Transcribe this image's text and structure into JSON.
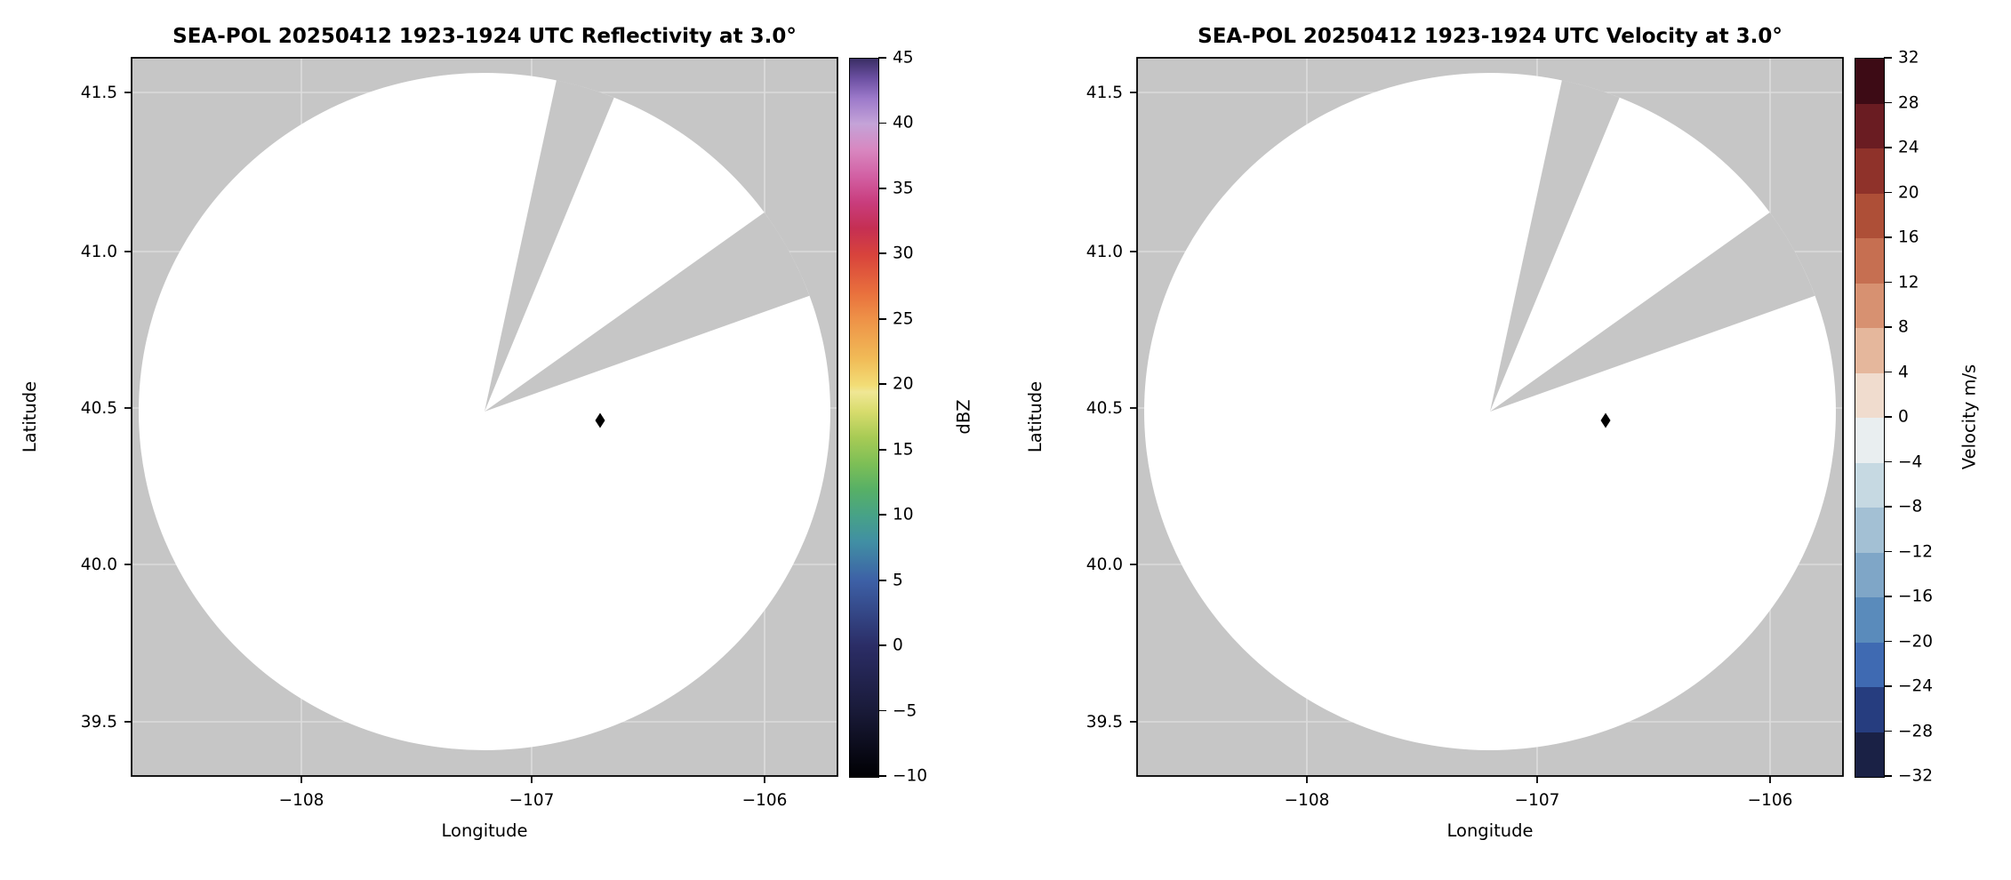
{
  "figure": {
    "bg": "#ffffff",
    "plot_bg_gray": "#c6c6c6",
    "grid_color": "#dcdcdc",
    "frame_color": "#000000",
    "marker_color": "#000000"
  },
  "panels": [
    {
      "title": "SEA-POL 20250412 1923-1924 UTC Reflectivity at 3.0°",
      "xlabel": "Longitude",
      "ylabel": "Latitude",
      "xticks": [
        "−108",
        "−107",
        "−106"
      ],
      "yticks": [
        "41.5",
        "41.0",
        "40.5",
        "40.0",
        "39.5"
      ],
      "colorbar": {
        "label": "dBZ",
        "type": "continuous",
        "ticks": [
          "45",
          "40",
          "35",
          "30",
          "25",
          "20",
          "15",
          "10",
          "5",
          "0",
          "−5",
          "−10"
        ],
        "gradient": [
          "#000003 0%",
          "#191a38 9.1%",
          "#2b2d66 18.2%",
          "#3d60a6 27.3%",
          "#418fa4 32.7%",
          "#47a287 36.4%",
          "#57b066 40%",
          "#7dbf56 43.6%",
          "#a8cb55 47.3%",
          "#d8dc6d 50.9%",
          "#f0e795 53.6%",
          "#f2dd76 54.5%",
          "#f1bb57 58.2%",
          "#ee9348 63.6%",
          "#e9713d 67.3%",
          "#d8433c 72.7%",
          "#c52f53 76.4%",
          "#c93d7d 80%",
          "#d260a3 83.6%",
          "#d887c0 87.3%",
          "#c4a3d8 90.9%",
          "#9c79ca 94.5%",
          "#6b4fa1 97.3%",
          "#3a2e65 100%"
        ]
      }
    },
    {
      "title": "SEA-POL 20250412 1923-1924 UTC Velocity at 3.0°",
      "xlabel": "Longitude",
      "ylabel": "Latitude",
      "xticks": [
        "−108",
        "−107",
        "−106"
      ],
      "yticks": [
        "41.5",
        "41.0",
        "40.5",
        "40.0",
        "39.5"
      ],
      "colorbar": {
        "label": "Velocity m/s",
        "type": "discrete",
        "ticks": [
          "32",
          "28",
          "24",
          "20",
          "16",
          "12",
          "8",
          "4",
          "0",
          "−4",
          "−8",
          "−12",
          "−16",
          "−20",
          "−24",
          "−28",
          "−32"
        ],
        "segment_colors_top_to_bottom": [
          "#3d0b15",
          "#6a1c22",
          "#8f322a",
          "#ae4f37",
          "#c66f51",
          "#d79171",
          "#e5b79c",
          "#f0dcce",
          "#e9eef0",
          "#c6d9e2",
          "#a3c0d4",
          "#7fa6c7",
          "#5a8bbb",
          "#3f6ab2",
          "#263d7f",
          "#1a2145"
        ]
      }
    }
  ],
  "chart_data": [
    {
      "type": "heatmap",
      "subtype": "radar_ppi_scan",
      "title": "SEA-POL 20250412 1923-1924 UTC Reflectivity at 3.0°",
      "field": "Reflectivity",
      "units": "dBZ",
      "elevation_deg": 3.0,
      "radar": "SEA-POL",
      "date": "20250412",
      "time_utc": "1923-1924",
      "xlabel": "Longitude",
      "ylabel": "Latitude",
      "xlim": [
        -108.73,
        -105.69
      ],
      "ylim": [
        39.33,
        41.61
      ],
      "xticks": [
        -108,
        -107,
        -106
      ],
      "yticks": [
        39.5,
        40.0,
        40.5,
        41.0,
        41.5
      ],
      "grid": true,
      "scan_center": {
        "lon": -107.19,
        "lat": 40.46
      },
      "scan_radius_deg_lat": 1.08,
      "scan_values": "entire coverage circle is background white (no echoes at or above -10 dBZ)",
      "missing_sectors_azimuth_deg": [
        [
          12,
          22
        ],
        [
          54,
          70
        ]
      ],
      "outside_scan_fill": "gray",
      "point_marker": {
        "lon": -106.7,
        "lat": 40.46,
        "shape": "diamond",
        "color": "#000000"
      },
      "colorbar": {
        "label": "dBZ",
        "min": -10,
        "max": 45,
        "tick_step": 5,
        "style": "continuous spectral: black-navy-blue-teal-green-yellow-orange-red-magenta-pink-lavender-dark purple"
      }
    },
    {
      "type": "heatmap",
      "subtype": "radar_ppi_scan",
      "title": "SEA-POL 20250412 1923-1924 UTC Velocity at 3.0°",
      "field": "Velocity",
      "units": "m/s",
      "elevation_deg": 3.0,
      "radar": "SEA-POL",
      "date": "20250412",
      "time_utc": "1923-1924",
      "xlabel": "Longitude",
      "ylabel": "Latitude",
      "xlim": [
        -108.73,
        -105.69
      ],
      "ylim": [
        39.33,
        41.61
      ],
      "xticks": [
        -108,
        -107,
        -106
      ],
      "yticks": [
        39.5,
        40.0,
        40.5,
        41.0,
        41.5
      ],
      "grid": true,
      "scan_center": {
        "lon": -107.19,
        "lat": 40.46
      },
      "scan_radius_deg_lat": 1.08,
      "scan_values": "entire coverage circle is background white (no velocity data)",
      "missing_sectors_azimuth_deg": [
        [
          12,
          22
        ],
        [
          54,
          70
        ]
      ],
      "outside_scan_fill": "gray",
      "point_marker": {
        "lon": -106.7,
        "lat": 40.46,
        "shape": "diamond",
        "color": "#000000"
      },
      "colorbar": {
        "label": "Velocity m/s",
        "min": -32,
        "max": 32,
        "tick_step": 4,
        "style": "discrete 16-step diverging (balance): dark navy-blue-light blue-white-salmon-red-dark maroon"
      }
    }
  ]
}
